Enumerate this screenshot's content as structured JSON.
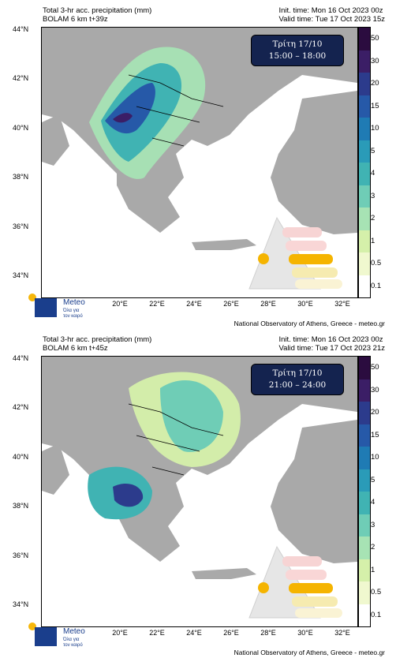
{
  "colors": {
    "land": "#a9a9a9",
    "sea": "#ffffff",
    "daybox_bg": "#14234f",
    "brand": "#1a3e8c",
    "accent": "#f6b70b"
  },
  "map_panels": [
    {
      "title_line1": "Total 3-hr acc. precipitation (mm)",
      "title_line2": "BOLAM 6 km t+39z",
      "init_time": "Init. time: Mon 16 Oct 2023 00z",
      "valid_time": "Valid time: Tue 17 Oct 2023 15z",
      "day_label": "Τρίτη 17/10",
      "time_range": "15:00 – 18:00",
      "credit": "National Observatory of Athens, Greece - meteo.gr"
    },
    {
      "title_line1": "Total 3-hr acc. precipitation (mm)",
      "title_line2": "BOLAM 6 km t+45z",
      "init_time": "Init. time: Mon 16 Oct 2023 00z",
      "valid_time": "Valid time: Tue 17 Oct 2023 21z",
      "day_label": "Τρίτη 17/10",
      "time_range": "21:00 – 24:00",
      "credit": "National Observatory of Athens, Greece - meteo.gr"
    }
  ],
  "lat_ticks": [
    "44°N",
    "42°N",
    "40°N",
    "38°N",
    "36°N",
    "34°N"
  ],
  "lon_ticks": [
    "20°E",
    "22°E",
    "24°E",
    "26°E",
    "28°E",
    "30°E",
    "32°E"
  ],
  "colorbar": {
    "labels": [
      "50",
      "30",
      "20",
      "15",
      "10",
      "5",
      "4",
      "3",
      "2",
      "1",
      "0.5",
      "0.1"
    ],
    "colors": [
      "#2b0c3f",
      "#3b1e66",
      "#2c3b8c",
      "#2659a8",
      "#1f7bb4",
      "#2a9bb8",
      "#40b3b3",
      "#6fcdb6",
      "#a7e3b4",
      "#d5f0aa",
      "#f0f8cf",
      "#ffffff"
    ]
  },
  "logo": {
    "name": "Meteo",
    "tagline": "Όλα για\nτον καιρό"
  }
}
